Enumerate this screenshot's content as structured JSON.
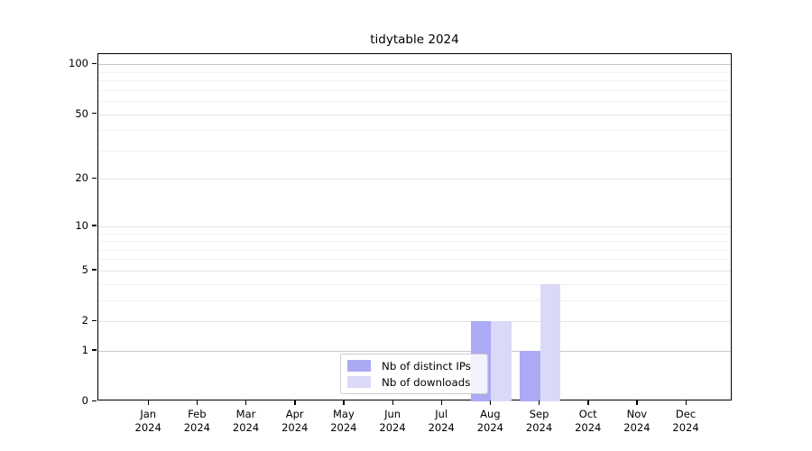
{
  "title": "tidytable 2024",
  "chart_data": {
    "type": "bar",
    "title": "tidytable 2024",
    "categories": [
      "Jan",
      "Feb",
      "Mar",
      "Apr",
      "May",
      "Jun",
      "Jul",
      "Aug",
      "Sep",
      "Oct",
      "Nov",
      "Dec"
    ],
    "category_year": "2024",
    "series": [
      {
        "name": "Nb of distinct IPs",
        "color": "#aaaaf5",
        "values": [
          0,
          0,
          0,
          0,
          0,
          0,
          0,
          2,
          1,
          0,
          0,
          0
        ]
      },
      {
        "name": "Nb of downloads",
        "color": "#dadaf8",
        "values": [
          0,
          0,
          0,
          0,
          0,
          0,
          0,
          2,
          4,
          0,
          0,
          0
        ]
      }
    ],
    "xlabel": "",
    "ylabel": "",
    "y_axis": {
      "scale": "log1p",
      "tick_values": [
        0,
        1,
        2,
        5,
        10,
        20,
        50,
        100
      ],
      "tick_labels": [
        "0",
        "1",
        "2",
        "5",
        "10",
        "20",
        "50",
        "100"
      ],
      "minor_grid_values": [
        3,
        4,
        6,
        7,
        8,
        9,
        30,
        40,
        60,
        70,
        80,
        90
      ],
      "ymax": 115,
      "ylim": [
        0,
        115
      ]
    },
    "grid": true,
    "legend_position": "lower center"
  }
}
